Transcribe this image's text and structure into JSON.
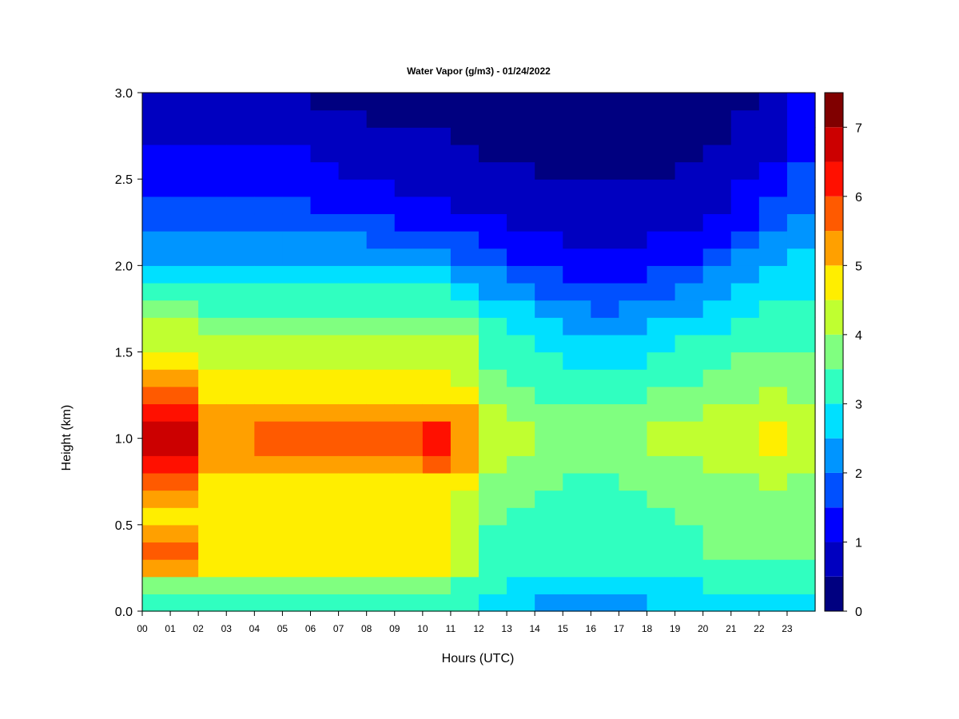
{
  "chart_data": {
    "type": "heatmap",
    "title": "Water Vapor (g/m3) - 01/24/2022",
    "xlabel": "Hours (UTC)",
    "ylabel": "Height (km)",
    "xlim": [
      0,
      24
    ],
    "ylim": [
      0,
      3
    ],
    "x_ticks": [
      "00",
      "01",
      "02",
      "03",
      "04",
      "05",
      "06",
      "07",
      "08",
      "09",
      "10",
      "11",
      "12",
      "13",
      "14",
      "15",
      "16",
      "17",
      "18",
      "19",
      "20",
      "21",
      "22",
      "23"
    ],
    "y_ticks": [
      "0.0",
      "0.5",
      "1.0",
      "1.5",
      "2.0",
      "2.5",
      "3.0"
    ],
    "colorbar": {
      "levels": [
        0,
        0.5,
        1,
        1.5,
        2,
        2.5,
        3,
        3.5,
        4,
        4.5,
        5,
        5.5,
        6,
        6.5,
        7,
        7.5
      ],
      "tick_labels": [
        "0",
        "1",
        "2",
        "3",
        "4",
        "5",
        "6",
        "7"
      ],
      "colors": [
        "#000080",
        "#0000c0",
        "#0000ff",
        "#0050ff",
        "#0095ff",
        "#00e0ff",
        "#30ffc0",
        "#80ff80",
        "#c0ff30",
        "#ffee00",
        "#ffa000",
        "#ff5a00",
        "#ff1000",
        "#cc0000",
        "#800000"
      ]
    },
    "heights_km": [
      0.05,
      0.15,
      0.25,
      0.35,
      0.45,
      0.55,
      0.65,
      0.75,
      0.85,
      0.95,
      1.05,
      1.15,
      1.25,
      1.35,
      1.45,
      1.55,
      1.65,
      1.75,
      1.85,
      1.95,
      2.05,
      2.15,
      2.25,
      2.35,
      2.45,
      2.55,
      2.65,
      2.75,
      2.85,
      2.95
    ],
    "hours_utc": [
      0,
      1,
      2,
      3,
      4,
      5,
      6,
      7,
      8,
      9,
      10,
      11,
      12,
      13,
      14,
      15,
      16,
      17,
      18,
      19,
      20,
      21,
      22,
      23
    ],
    "values_by_hour": [
      [
        3.4,
        3.8,
        5.2,
        5.6,
        5.0,
        4.8,
        5.4,
        5.8,
        6.2,
        6.6,
        6.6,
        6.2,
        5.8,
        5.2,
        4.7,
        4.4,
        4.2,
        3.6,
        3.2,
        2.8,
        2.4,
        2.2,
        1.9,
        1.6,
        1.4,
        1.3,
        1.1,
        0.9,
        0.8,
        0.7
      ],
      [
        3.4,
        3.8,
        5.2,
        5.6,
        5.0,
        4.8,
        5.4,
        5.8,
        6.2,
        6.6,
        6.6,
        6.2,
        5.8,
        5.2,
        4.7,
        4.4,
        4.2,
        3.6,
        3.2,
        2.8,
        2.4,
        2.2,
        1.9,
        1.6,
        1.4,
        1.3,
        1.1,
        0.9,
        0.8,
        0.7
      ],
      [
        3.2,
        3.6,
        4.6,
        4.8,
        4.6,
        4.5,
        4.6,
        4.8,
        5.0,
        5.3,
        5.3,
        5.0,
        4.8,
        4.6,
        4.4,
        4.2,
        3.8,
        3.4,
        3.0,
        2.6,
        2.3,
        2.1,
        1.8,
        1.5,
        1.4,
        1.2,
        1.0,
        0.9,
        0.8,
        0.7
      ],
      [
        3.2,
        3.6,
        4.6,
        4.9,
        4.6,
        4.5,
        4.6,
        4.8,
        5.1,
        5.4,
        5.4,
        5.1,
        4.8,
        4.6,
        4.4,
        4.2,
        3.8,
        3.4,
        3.0,
        2.6,
        2.3,
        2.1,
        1.8,
        1.5,
        1.4,
        1.2,
        1.0,
        0.9,
        0.8,
        0.7
      ],
      [
        3.2,
        3.6,
        4.6,
        4.9,
        4.6,
        4.5,
        4.6,
        4.8,
        5.2,
        5.5,
        5.5,
        5.1,
        4.8,
        4.6,
        4.4,
        4.2,
        3.8,
        3.4,
        3.0,
        2.6,
        2.3,
        2.1,
        1.8,
        1.5,
        1.3,
        1.2,
        1.0,
        0.9,
        0.7,
        0.6
      ],
      [
        3.2,
        3.6,
        4.6,
        4.9,
        4.6,
        4.5,
        4.6,
        4.8,
        5.2,
        5.5,
        5.5,
        5.1,
        4.8,
        4.6,
        4.4,
        4.2,
        3.8,
        3.4,
        3.0,
        2.6,
        2.3,
        2.1,
        1.8,
        1.5,
        1.3,
        1.1,
        1.0,
        0.8,
        0.6,
        0.5
      ],
      [
        3.2,
        3.6,
        4.6,
        4.9,
        4.6,
        4.5,
        4.6,
        4.8,
        5.3,
        5.7,
        5.7,
        5.2,
        4.8,
        4.6,
        4.4,
        4.2,
        3.8,
        3.4,
        3.0,
        2.6,
        2.2,
        2.0,
        1.7,
        1.4,
        1.2,
        1.0,
        0.9,
        0.7,
        0.5,
        0.4
      ],
      [
        3.2,
        3.6,
        4.6,
        4.9,
        4.6,
        4.5,
        4.6,
        4.8,
        5.2,
        5.5,
        5.5,
        5.1,
        4.8,
        4.6,
        4.4,
        4.2,
        3.8,
        3.4,
        3.0,
        2.6,
        2.2,
        2.0,
        1.6,
        1.3,
        1.1,
        0.9,
        0.8,
        0.6,
        0.5,
        0.4
      ],
      [
        3.2,
        3.6,
        4.6,
        4.9,
        4.6,
        4.5,
        4.6,
        4.8,
        5.3,
        5.6,
        5.6,
        5.2,
        4.8,
        4.6,
        4.4,
        4.2,
        3.8,
        3.4,
        3.0,
        2.6,
        2.2,
        1.9,
        1.5,
        1.2,
        1.0,
        0.8,
        0.7,
        0.5,
        0.4,
        0.4
      ],
      [
        3.2,
        3.6,
        4.6,
        4.9,
        4.6,
        4.5,
        4.6,
        4.8,
        5.4,
        5.9,
        5.9,
        5.3,
        4.8,
        4.6,
        4.4,
        4.2,
        3.8,
        3.4,
        3.0,
        2.5,
        2.1,
        1.8,
        1.4,
        1.1,
        0.9,
        0.7,
        0.6,
        0.5,
        0.4,
        0.3
      ],
      [
        3.2,
        3.6,
        4.6,
        4.9,
        4.6,
        4.5,
        4.6,
        4.8,
        5.5,
        6.1,
        6.1,
        5.4,
        4.8,
        4.6,
        4.4,
        4.2,
        3.8,
        3.4,
        3.0,
        2.5,
        2.1,
        1.7,
        1.3,
        1.0,
        0.8,
        0.7,
        0.6,
        0.5,
        0.4,
        0.3
      ],
      [
        3.1,
        3.4,
        4.2,
        4.4,
        4.2,
        4.2,
        4.4,
        4.6,
        5.0,
        5.4,
        5.4,
        5.0,
        4.6,
        4.4,
        4.2,
        4.0,
        3.6,
        3.2,
        2.8,
        2.4,
        1.9,
        1.5,
        1.2,
        0.9,
        0.8,
        0.6,
        0.5,
        0.4,
        0.4,
        0.3
      ],
      [
        2.8,
        3.0,
        3.3,
        3.4,
        3.4,
        3.5,
        3.6,
        3.8,
        4.0,
        4.2,
        4.2,
        4.0,
        3.8,
        3.6,
        3.4,
        3.2,
        3.0,
        2.7,
        2.4,
        2.0,
        1.6,
        1.3,
        1.0,
        0.8,
        0.6,
        0.5,
        0.4,
        0.4,
        0.3,
        0.3
      ],
      [
        2.6,
        2.8,
        3.1,
        3.3,
        3.3,
        3.4,
        3.5,
        3.6,
        3.8,
        4.0,
        4.0,
        3.8,
        3.6,
        3.4,
        3.2,
        3.0,
        2.8,
        2.5,
        2.1,
        1.7,
        1.4,
        1.1,
        0.9,
        0.7,
        0.6,
        0.5,
        0.4,
        0.3,
        0.3,
        0.2
      ],
      [
        2.3,
        2.6,
        3.0,
        3.2,
        3.2,
        3.3,
        3.4,
        3.5,
        3.6,
        3.8,
        3.8,
        3.6,
        3.4,
        3.2,
        3.0,
        2.8,
        2.5,
        2.1,
        1.8,
        1.5,
        1.2,
        1.0,
        0.8,
        0.6,
        0.5,
        0.4,
        0.4,
        0.3,
        0.3,
        0.2
      ],
      [
        2.2,
        2.5,
        3.0,
        3.2,
        3.2,
        3.2,
        3.3,
        3.4,
        3.6,
        3.8,
        3.8,
        3.6,
        3.4,
        3.2,
        2.9,
        2.6,
        2.3,
        2.0,
        1.6,
        1.3,
        1.1,
        0.9,
        0.7,
        0.6,
        0.5,
        0.4,
        0.4,
        0.3,
        0.2,
        0.2
      ],
      [
        2.2,
        2.5,
        3.0,
        3.2,
        3.2,
        3.2,
        3.3,
        3.4,
        3.6,
        3.8,
        3.8,
        3.6,
        3.4,
        3.1,
        2.8,
        2.5,
        2.2,
        1.9,
        1.5,
        1.3,
        1.1,
        0.9,
        0.7,
        0.6,
        0.5,
        0.4,
        0.3,
        0.3,
        0.2,
        0.2
      ],
      [
        2.3,
        2.6,
        3.0,
        3.2,
        3.2,
        3.3,
        3.4,
        3.5,
        3.7,
        3.9,
        3.9,
        3.7,
        3.4,
        3.2,
        2.9,
        2.6,
        2.3,
        2.0,
        1.6,
        1.3,
        1.1,
        0.9,
        0.7,
        0.6,
        0.5,
        0.4,
        0.3,
        0.3,
        0.2,
        0.2
      ],
      [
        2.5,
        2.8,
        3.1,
        3.3,
        3.3,
        3.4,
        3.5,
        3.6,
        3.8,
        4.0,
        4.0,
        3.8,
        3.5,
        3.3,
        3.0,
        2.8,
        2.5,
        2.2,
        1.8,
        1.5,
        1.2,
        1.0,
        0.8,
        0.6,
        0.5,
        0.4,
        0.4,
        0.3,
        0.3,
        0.2
      ],
      [
        2.6,
        2.9,
        3.2,
        3.4,
        3.4,
        3.5,
        3.6,
        3.7,
        3.9,
        4.1,
        4.1,
        3.9,
        3.6,
        3.4,
        3.2,
        3.0,
        2.7,
        2.4,
        2.0,
        1.7,
        1.4,
        1.1,
        0.9,
        0.7,
        0.6,
        0.5,
        0.4,
        0.4,
        0.3,
        0.3
      ],
      [
        2.7,
        3.0,
        3.3,
        3.5,
        3.5,
        3.6,
        3.7,
        3.8,
        4.0,
        4.2,
        4.2,
        4.0,
        3.8,
        3.6,
        3.4,
        3.2,
        2.9,
        2.6,
        2.3,
        2.0,
        1.7,
        1.4,
        1.1,
        0.9,
        0.7,
        0.6,
        0.5,
        0.4,
        0.4,
        0.3
      ],
      [
        2.8,
        3.1,
        3.4,
        3.6,
        3.6,
        3.7,
        3.8,
        3.9,
        4.1,
        4.3,
        4.3,
        4.1,
        3.9,
        3.7,
        3.5,
        3.3,
        3.1,
        2.9,
        2.6,
        2.3,
        2.0,
        1.7,
        1.4,
        1.2,
        1.0,
        0.8,
        0.7,
        0.6,
        0.5,
        0.4
      ],
      [
        2.8,
        3.1,
        3.4,
        3.6,
        3.6,
        3.7,
        3.8,
        4.0,
        4.3,
        4.6,
        4.6,
        4.3,
        4.0,
        3.8,
        3.6,
        3.4,
        3.2,
        3.0,
        2.8,
        2.6,
        2.3,
        2.1,
        1.8,
        1.5,
        1.3,
        1.1,
        0.9,
        0.8,
        0.7,
        0.6
      ],
      [
        2.8,
        3.0,
        3.3,
        3.5,
        3.5,
        3.6,
        3.7,
        3.9,
        4.1,
        4.4,
        4.4,
        4.1,
        3.9,
        3.7,
        3.5,
        3.4,
        3.2,
        3.0,
        2.9,
        2.7,
        2.5,
        2.3,
        2.1,
        1.9,
        1.7,
        1.5,
        1.3,
        1.2,
        1.1,
        1.0
      ]
    ]
  }
}
